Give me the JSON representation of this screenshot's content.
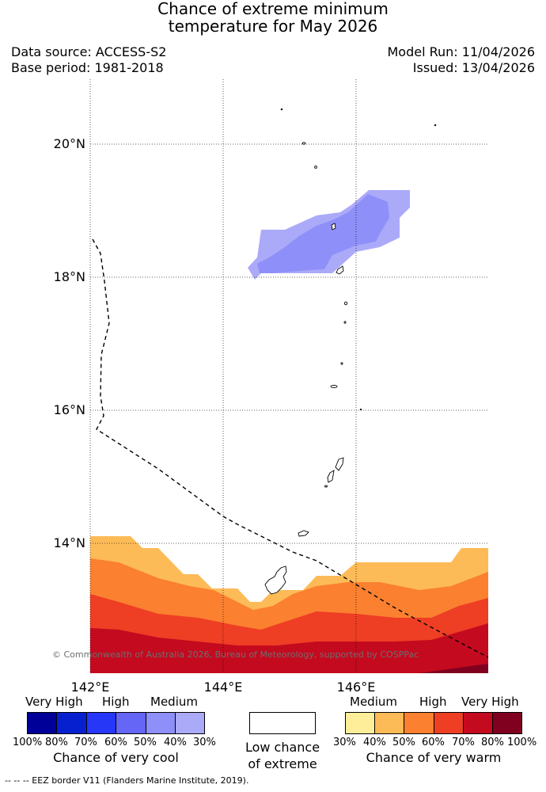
{
  "title": {
    "line1": "Chance of extreme minimum",
    "line2": "temperature for May 2026"
  },
  "meta": {
    "data_source": "Data source: ACCESS-S2",
    "base_period": "Base period: 1981-2018",
    "model_run": "Model Run: 11/04/2026",
    "issued": "Issued: 13/04/2026"
  },
  "map": {
    "lat_labels": [
      "20°N",
      "18°N",
      "16°N",
      "14°N"
    ],
    "lon_labels": [
      "142°E",
      "144°E",
      "146°E"
    ],
    "copyright": "© Commonwealth of Australia 2026, Bureau of Meteorology, supported by COSPPac",
    "colors": {
      "warm_30": "#ffee99",
      "warm_40": "#fdbb57",
      "warm_50": "#fb8030",
      "warm_60": "#ee3e24",
      "warm_70": "#c40a1f",
      "warm_80": "#800020",
      "cool_40": "#8f8ff9",
      "cool_30": "#abaaf9"
    }
  },
  "legend": {
    "cool": {
      "headings": [
        "Very High",
        "High",
        "Medium"
      ],
      "ticks": [
        "100%",
        "80%",
        "70%",
        "60%",
        "50%",
        "40%",
        "30%"
      ],
      "caption": "Chance of very cool",
      "colors": [
        "#000098",
        "#0620d0",
        "#2637f8",
        "#6565f6",
        "#8f8ff9",
        "#abaaf9"
      ]
    },
    "neutral": {
      "caption_line1": "Low chance",
      "caption_line2": "of extreme"
    },
    "warm": {
      "headings": [
        "Medium",
        "High",
        "Very High"
      ],
      "ticks": [
        "30%",
        "40%",
        "50%",
        "60%",
        "70%",
        "80%",
        "100%"
      ],
      "caption": "Chance of very warm",
      "colors": [
        "#ffee99",
        "#fdbb57",
        "#fb8030",
        "#ee3e24",
        "#c40a1f",
        "#800020"
      ]
    }
  },
  "footer": {
    "eez": "--  --  -- EEZ border V11 (Flanders Marine Institute, 2019)."
  }
}
